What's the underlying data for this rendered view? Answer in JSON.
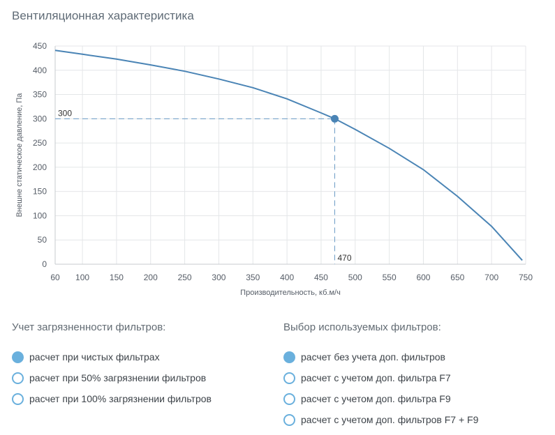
{
  "title": "Вентиляционная характеристика",
  "chart_data": {
    "type": "line",
    "xlabel": "Производительность, кб.м/ч",
    "ylabel": "Внешне статическое давление, Па",
    "xlim": [
      60,
      750
    ],
    "ylim": [
      0,
      450
    ],
    "x_ticks": [
      60,
      100,
      150,
      200,
      250,
      300,
      350,
      400,
      450,
      500,
      550,
      600,
      650,
      700,
      750
    ],
    "y_ticks": [
      0,
      50,
      100,
      150,
      200,
      250,
      300,
      350,
      400,
      450
    ],
    "grid": true,
    "series": [
      {
        "color": "#4a84b5",
        "x": [
          60,
          100,
          150,
          200,
          250,
          300,
          350,
          400,
          450,
          470,
          500,
          550,
          600,
          650,
          700,
          745
        ],
        "y": [
          441,
          433,
          423,
          411,
          398,
          382,
          364,
          341,
          312,
          300,
          278,
          239,
          195,
          140,
          78,
          8
        ]
      }
    ],
    "operating_point": {
      "x": 470,
      "y": 300,
      "x_label": "470",
      "y_label": "300"
    }
  },
  "filters_contamination": {
    "title": "Учет загрязненности фильтров:",
    "options": [
      {
        "label": "расчет при чистых фильтрах",
        "checked": true
      },
      {
        "label": "расчет при 50% загрязнении фильтров",
        "checked": false
      },
      {
        "label": "расчет при 100% загрязнении фильтров",
        "checked": false
      }
    ]
  },
  "filters_selection": {
    "title": "Выбор используемых фильтров:",
    "options": [
      {
        "label": "расчет без учета доп. фильтров",
        "checked": true
      },
      {
        "label": "расчет с учетом доп. фильтра F7",
        "checked": false
      },
      {
        "label": "расчет с учетом доп. фильтра F9",
        "checked": false
      },
      {
        "label": "расчет с учетом доп. фильтров F7 + F9",
        "checked": false
      }
    ]
  }
}
